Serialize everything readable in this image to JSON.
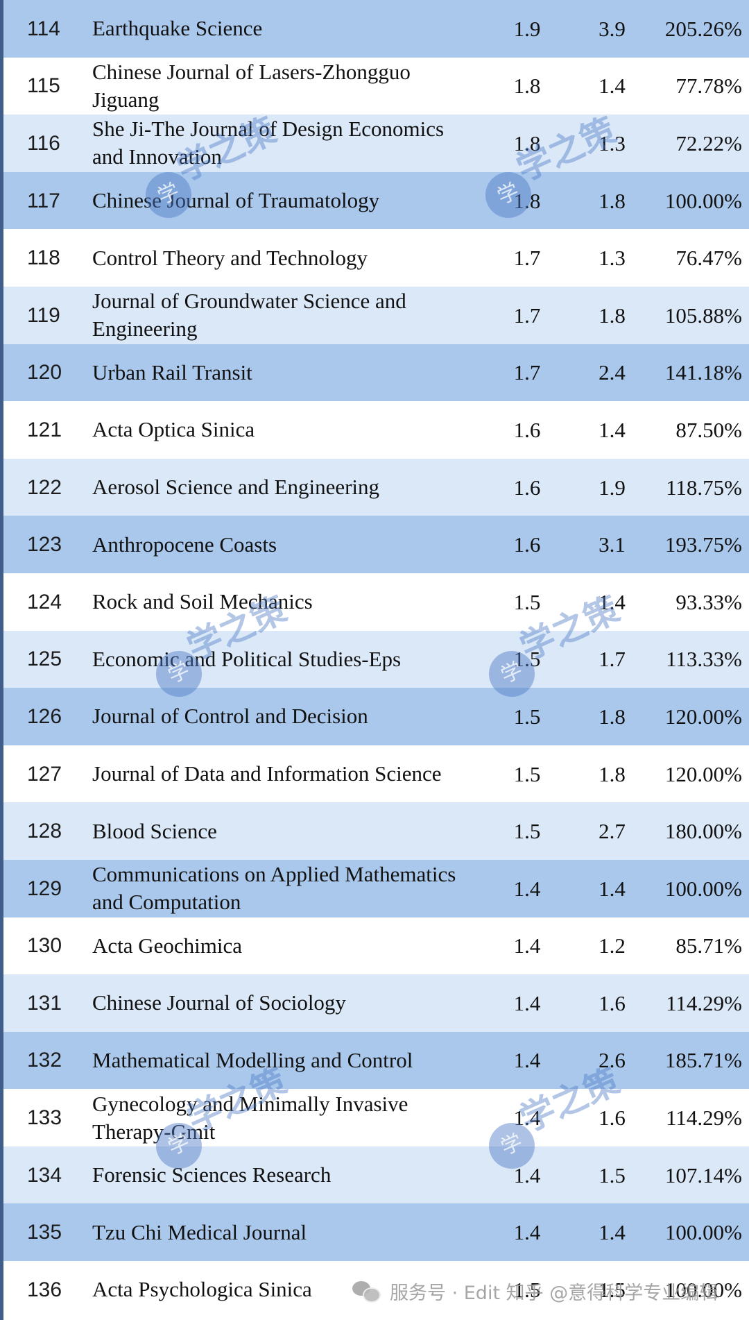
{
  "table": {
    "rows": [
      {
        "rank": "114",
        "name": "Earthquake Science",
        "v1": "1.9",
        "v2": "3.9",
        "pct": "205.26%",
        "shade": "dark"
      },
      {
        "rank": "115",
        "name": "Chinese Journal of Lasers-Zhongguo Jiguang",
        "v1": "1.8",
        "v2": "1.4",
        "pct": "77.78%",
        "shade": "white"
      },
      {
        "rank": "116",
        "name": "She Ji-The Journal of Design Economics and Innovation",
        "v1": "1.8",
        "v2": "1.3",
        "pct": "72.22%",
        "shade": "light"
      },
      {
        "rank": "117",
        "name": "Chinese Journal of Traumatology",
        "v1": "1.8",
        "v2": "1.8",
        "pct": "100.00%",
        "shade": "dark"
      },
      {
        "rank": "118",
        "name": "Control Theory and Technology",
        "v1": "1.7",
        "v2": "1.3",
        "pct": "76.47%",
        "shade": "white"
      },
      {
        "rank": "119",
        "name": "Journal of Groundwater Science and Engineering",
        "v1": "1.7",
        "v2": "1.8",
        "pct": "105.88%",
        "shade": "light"
      },
      {
        "rank": "120",
        "name": "Urban Rail Transit",
        "v1": "1.7",
        "v2": "2.4",
        "pct": "141.18%",
        "shade": "dark"
      },
      {
        "rank": "121",
        "name": "Acta Optica Sinica",
        "v1": "1.6",
        "v2": "1.4",
        "pct": "87.50%",
        "shade": "white"
      },
      {
        "rank": "122",
        "name": "Aerosol Science and Engineering",
        "v1": "1.6",
        "v2": "1.9",
        "pct": "118.75%",
        "shade": "light"
      },
      {
        "rank": "123",
        "name": "Anthropocene Coasts",
        "v1": "1.6",
        "v2": "3.1",
        "pct": "193.75%",
        "shade": "dark"
      },
      {
        "rank": "124",
        "name": "Rock and Soil Mechanics",
        "v1": "1.5",
        "v2": "1.4",
        "pct": "93.33%",
        "shade": "white"
      },
      {
        "rank": "125",
        "name": "Economic and Political Studies-Eps",
        "v1": "1.5",
        "v2": "1.7",
        "pct": "113.33%",
        "shade": "light"
      },
      {
        "rank": "126",
        "name": "Journal of Control and Decision",
        "v1": "1.5",
        "v2": "1.8",
        "pct": "120.00%",
        "shade": "dark"
      },
      {
        "rank": "127",
        "name": "Journal of Data and Information Science",
        "v1": "1.5",
        "v2": "1.8",
        "pct": "120.00%",
        "shade": "white"
      },
      {
        "rank": "128",
        "name": "Blood Science",
        "v1": "1.5",
        "v2": "2.7",
        "pct": "180.00%",
        "shade": "light"
      },
      {
        "rank": "129",
        "name": "Communications on Applied Mathematics and Computation",
        "v1": "1.4",
        "v2": "1.4",
        "pct": "100.00%",
        "shade": "dark"
      },
      {
        "rank": "130",
        "name": "Acta Geochimica",
        "v1": "1.4",
        "v2": "1.2",
        "pct": "85.71%",
        "shade": "white"
      },
      {
        "rank": "131",
        "name": "Chinese Journal of Sociology",
        "v1": "1.4",
        "v2": "1.6",
        "pct": "114.29%",
        "shade": "light"
      },
      {
        "rank": "132",
        "name": "Mathematical Modelling and Control",
        "v1": "1.4",
        "v2": "2.6",
        "pct": "185.71%",
        "shade": "dark"
      },
      {
        "rank": "133",
        "name": "Gynecology and Minimally Invasive Therapy-Gmit",
        "v1": "1.4",
        "v2": "1.6",
        "pct": "114.29%",
        "shade": "white"
      },
      {
        "rank": "134",
        "name": "Forensic Sciences Research",
        "v1": "1.4",
        "v2": "1.5",
        "pct": "107.14%",
        "shade": "light"
      },
      {
        "rank": "135",
        "name": "Tzu Chi Medical Journal",
        "v1": "1.4",
        "v2": "1.4",
        "pct": "100.00%",
        "shade": "dark"
      },
      {
        "rank": "136",
        "name": "Acta Psychologica Sinica",
        "v1": "1.5",
        "v2": "1.5",
        "pct": "100.00%",
        "shade": "white"
      }
    ]
  },
  "watermark": {
    "text": "学之策",
    "circle_glyph": "学",
    "icon": "circle-logo-icon",
    "color": "#4a78c4"
  },
  "footer_watermark": {
    "text": "服务号 · Edit 知乎 @意得科学专业编辑",
    "icon": "wechat-icon"
  },
  "colors": {
    "row_dark": "#a9c8ec",
    "row_light": "#dbe8f8",
    "row_white": "#ffffff",
    "frame": "#3f5f8a"
  }
}
